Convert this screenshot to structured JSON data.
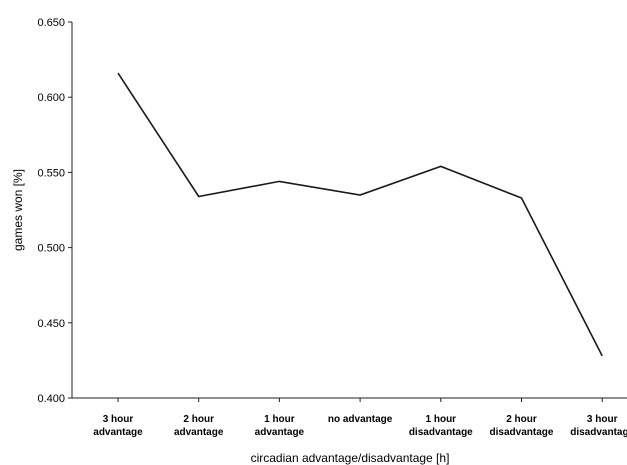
{
  "chart_data": {
    "type": "line",
    "title": "",
    "xlabel": "circadian advantage/disadvantage [h]",
    "ylabel": "games won [%]",
    "ylim": [
      0.4,
      0.65
    ],
    "yticks": [
      "0.400",
      "0.450",
      "0.500",
      "0.550",
      "0.600",
      "0.650"
    ],
    "ytick_values": [
      0.4,
      0.45,
      0.5,
      0.55,
      0.6,
      0.65
    ],
    "categories": [
      [
        "3 hour",
        "advantage"
      ],
      [
        "2 hour",
        "advantage"
      ],
      [
        "1 hour",
        "advantage"
      ],
      [
        "no advantage"
      ],
      [
        "1 hour",
        "disadvantage"
      ],
      [
        "2 hour",
        "disadvantage"
      ],
      [
        "3 hour",
        "disadvantage"
      ]
    ],
    "series": [
      {
        "values": [
          0.616,
          0.534,
          0.544,
          0.535,
          0.554,
          0.533,
          0.428
        ],
        "color": "#1a1a1a"
      }
    ],
    "grid": false,
    "legend": "none"
  }
}
